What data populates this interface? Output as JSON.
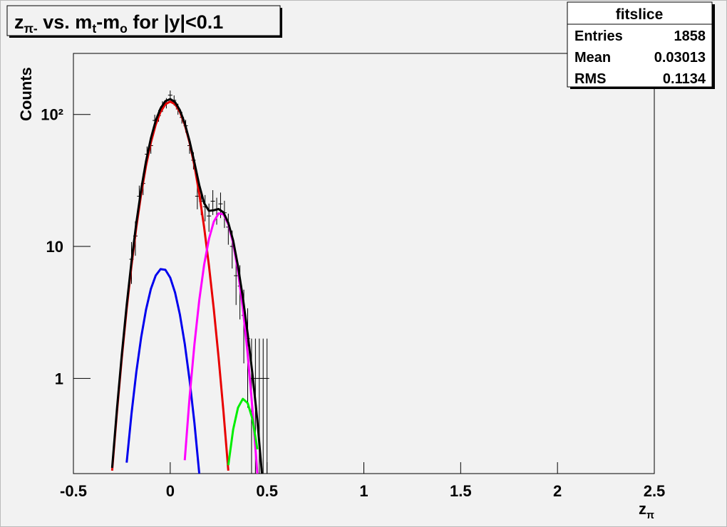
{
  "chart_data": {
    "type": "line",
    "title_parts": [
      {
        "text": "z"
      },
      {
        "text": "π-",
        "sub": true
      },
      {
        "text": " vs. m"
      },
      {
        "text": "t",
        "sub": true
      },
      {
        "text": "-m"
      },
      {
        "text": "o",
        "sub": true
      },
      {
        "text": " for |y|<0.1"
      }
    ],
    "x_label_parts": [
      {
        "text": "z"
      },
      {
        "text": "π",
        "sub": true
      }
    ],
    "y_label": "Counts",
    "ylog": true,
    "xlim": [
      -0.5,
      2.5
    ],
    "ylim": [
      0.19,
      290
    ],
    "xticks": [
      -0.5,
      0,
      0.5,
      1,
      1.5,
      2,
      2.5
    ],
    "yticks": [
      1,
      10,
      {
        "value": 100,
        "label": "10²"
      }
    ],
    "x": [
      -0.3,
      -0.275,
      -0.25,
      -0.225,
      -0.2,
      -0.175,
      -0.15,
      -0.125,
      -0.1,
      -0.075,
      -0.05,
      -0.025,
      0,
      0.025,
      0.05,
      0.075,
      0.1,
      0.125,
      0.15,
      0.175,
      0.2,
      0.225,
      0.25,
      0.275,
      0.3,
      0.325,
      0.35,
      0.375,
      0.4,
      0.425,
      0.45,
      0.475
    ],
    "series": [
      {
        "color": "#e80000",
        "values": [
          0.2,
          0.56,
          1.43,
          3.35,
          7.15,
          14.0,
          25.0,
          40.9,
          61.1,
          83.6,
          104.5,
          119.5,
          125,
          119.5,
          104.5,
          83.6,
          61.1,
          40.9,
          25.0,
          14.0,
          7.15,
          3.35,
          1.43,
          0.56,
          0.2,
          null,
          null,
          null,
          null,
          null,
          null,
          null
        ]
      },
      {
        "color": "#0000ee",
        "values": [
          null,
          null,
          null,
          0.23,
          0.54,
          1.12,
          2.05,
          3.32,
          4.76,
          6.02,
          6.73,
          6.65,
          5.8,
          4.47,
          3.04,
          1.83,
          0.97,
          0.46,
          0.19,
          null,
          null,
          null,
          null,
          null,
          null,
          null,
          null,
          null,
          null,
          null,
          null,
          null
        ]
      },
      {
        "color": "#ff00ff",
        "values": [
          null,
          null,
          null,
          null,
          null,
          null,
          null,
          null,
          null,
          null,
          null,
          null,
          null,
          null,
          null,
          0.24,
          0.72,
          1.81,
          3.92,
          7.25,
          11.4,
          15.4,
          17.8,
          17.5,
          14.7,
          10.6,
          6.49,
          3.4,
          1.53,
          0.58,
          0.19,
          null
        ]
      },
      {
        "color": "#00ee00",
        "values": [
          null,
          null,
          null,
          null,
          null,
          null,
          null,
          null,
          null,
          null,
          null,
          null,
          null,
          null,
          null,
          null,
          null,
          null,
          null,
          null,
          null,
          null,
          null,
          null,
          0.22,
          0.41,
          0.6,
          0.7,
          0.65,
          0.49,
          0.29,
          null
        ]
      },
      {
        "color": "#000000",
        "values": [
          0.21,
          0.59,
          1.52,
          3.58,
          7.69,
          15.1,
          27.1,
          44.2,
          65.9,
          89.6,
          111.2,
          126.2,
          130.8,
          124.0,
          107.6,
          85.7,
          62.8,
          43.2,
          29.1,
          21.3,
          18.6,
          18.8,
          19.2,
          18.1,
          15.1,
          11.1,
          7.09,
          4.1,
          2.18,
          1.07,
          0.48,
          0.18
        ]
      }
    ],
    "points": {
      "color": "#000000",
      "x": [
        -0.2,
        -0.18,
        -0.16,
        -0.14,
        -0.12,
        -0.1,
        -0.08,
        -0.06,
        -0.04,
        -0.02,
        0,
        0.02,
        0.04,
        0.06,
        0.08,
        0.1,
        0.12,
        0.14,
        0.16,
        0.18,
        0.2,
        0.22,
        0.24,
        0.26,
        0.28,
        0.3,
        0.32,
        0.34,
        0.36,
        0.38,
        0.4,
        0.42,
        0.44,
        0.46,
        0.48,
        0.5
      ],
      "values": [
        8,
        12,
        24,
        30,
        50,
        58,
        90,
        98,
        115,
        122,
        140,
        128,
        110,
        95,
        82,
        58,
        45,
        24,
        22,
        20,
        17,
        22,
        19,
        21,
        18,
        14,
        10,
        6,
        5,
        3,
        2,
        1,
        1,
        1,
        1,
        1
      ],
      "errors": [
        2.8,
        3.5,
        4.9,
        5.5,
        7.1,
        7.6,
        9.5,
        9.9,
        10.7,
        11,
        11.8,
        11.3,
        10.5,
        9.7,
        9.1,
        7.6,
        6.7,
        4.9,
        4.7,
        4.5,
        4.1,
        4.7,
        4.4,
        4.6,
        4.2,
        3.7,
        3.2,
        2.4,
        2.2,
        1.7,
        1.4,
        1,
        1,
        1,
        1,
        1
      ]
    }
  },
  "stats": {
    "title": "fitslice",
    "rows": [
      [
        "Entries",
        1858
      ],
      [
        "Mean",
        0.03013
      ],
      [
        "RMS",
        0.1134
      ]
    ]
  }
}
